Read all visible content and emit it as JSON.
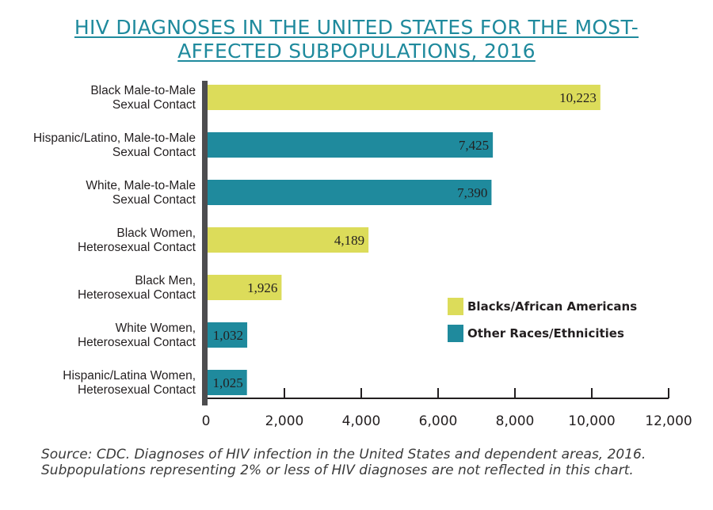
{
  "chart_data": {
    "type": "bar",
    "orientation": "horizontal",
    "title_lines": [
      "HIV DIAGNOSES IN THE UNITED STATES FOR THE MOST-",
      "AFFECTED SUBPOPULATIONS, 2016"
    ],
    "categories": [
      [
        "Black Male-to-Male",
        "Sexual Contact"
      ],
      [
        "Hispanic/Latino, Male-to-Male",
        "Sexual Contact"
      ],
      [
        "White, Male-to-Male",
        "Sexual Contact"
      ],
      [
        "Black Women,",
        "Heterosexual Contact"
      ],
      [
        "Black Men,",
        "Heterosexual Contact"
      ],
      [
        "White Women,",
        "Heterosexual Contact"
      ],
      [
        "Hispanic/Latina Women,",
        "Heterosexual Contact"
      ]
    ],
    "values": [
      10223,
      7425,
      7390,
      4189,
      1926,
      1032,
      1025
    ],
    "value_labels": [
      "10,223",
      "7,425",
      "7,390",
      "4,189",
      "1,926",
      "1,032",
      "1,025"
    ],
    "bar_groups": [
      0,
      1,
      1,
      0,
      0,
      1,
      1
    ],
    "groups": [
      {
        "name": "Blacks/African Americans",
        "color": "#dcdc5a"
      },
      {
        "name": "Other Races/Ethnicities",
        "color": "#1f8a9d"
      }
    ],
    "xlim": [
      0,
      12000
    ],
    "xticks": [
      0,
      2000,
      4000,
      6000,
      8000,
      10000,
      12000
    ],
    "xtick_labels": [
      "0",
      "2,000",
      "4,000",
      "6,000",
      "8,000",
      "10,000",
      "12,000"
    ],
    "legend_position": "right",
    "grid": false,
    "axis_color": "#4d4d4f"
  },
  "source_note": "Source: CDC. Diagnoses of HIV infection in the United States and dependent areas, 2016. Subpopulations representing 2% or less of HIV diagnoses are not reflected in this chart."
}
